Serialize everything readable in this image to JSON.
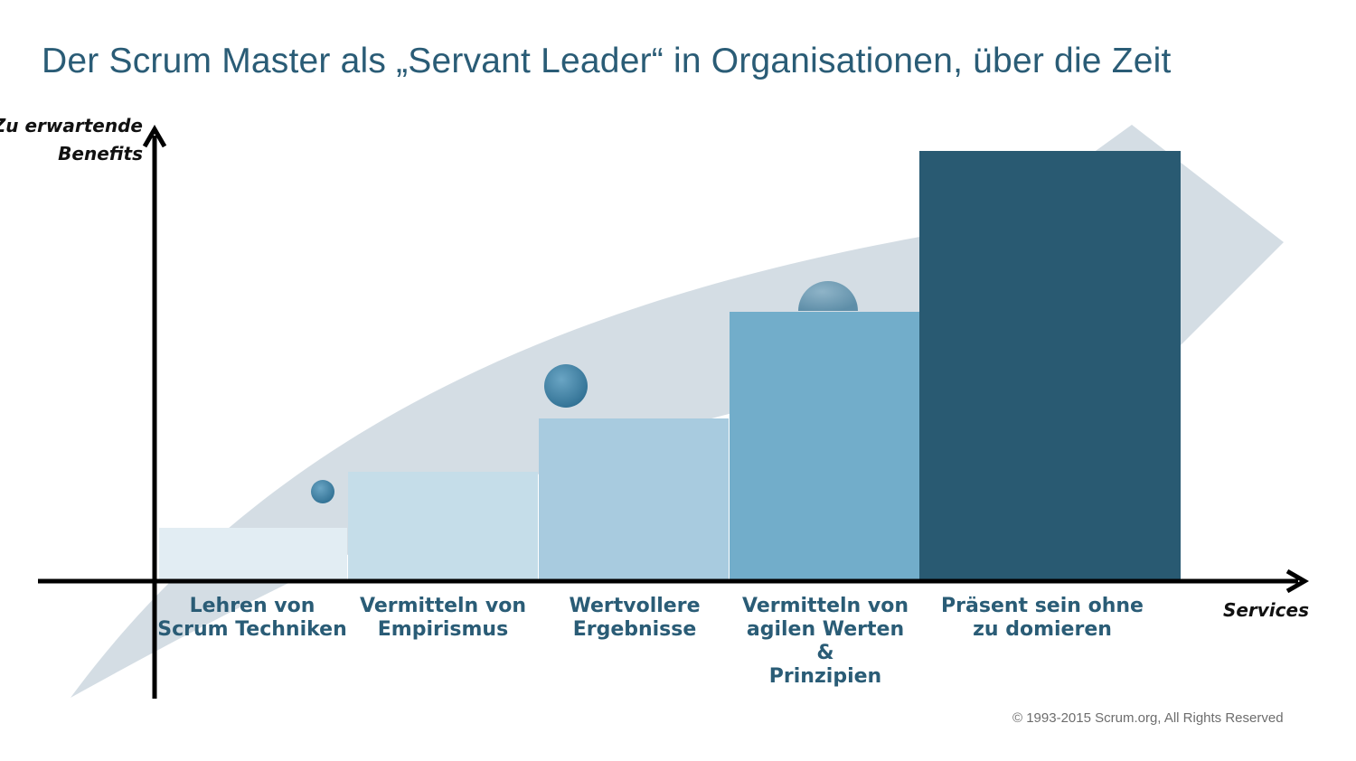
{
  "title": "Der Scrum Master als „Servant Leader“ in Organisationen, über die Zeit",
  "y_axis_label": [
    "Zu erwartende",
    "Benefits"
  ],
  "x_axis_label": "Services",
  "copyright": "© 1993-2015  Scrum.org, All Rights Reserved",
  "steps": [
    {
      "label": [
        "Lehren von",
        "Scrum Techniken"
      ],
      "color": "#e2edf3"
    },
    {
      "label": [
        "Vermitteln von",
        "Empirismus"
      ],
      "color": "#c5dde9"
    },
    {
      "label": [
        "Wertvollere",
        "Ergebnisse"
      ],
      "color": "#a8cbdf"
    },
    {
      "label": [
        "Vermitteln von",
        "agilen Werten",
        "&",
        "Prinzipien"
      ],
      "color": "#72adca"
    },
    {
      "label": [
        "Präsent sein ohne",
        "zu domieren"
      ],
      "color": "#295a72"
    }
  ],
  "colors": {
    "title": "#2a5c76",
    "arrow_band": "#cfd9e1",
    "bubble": "#3d7ea0",
    "axis": "#000000"
  }
}
